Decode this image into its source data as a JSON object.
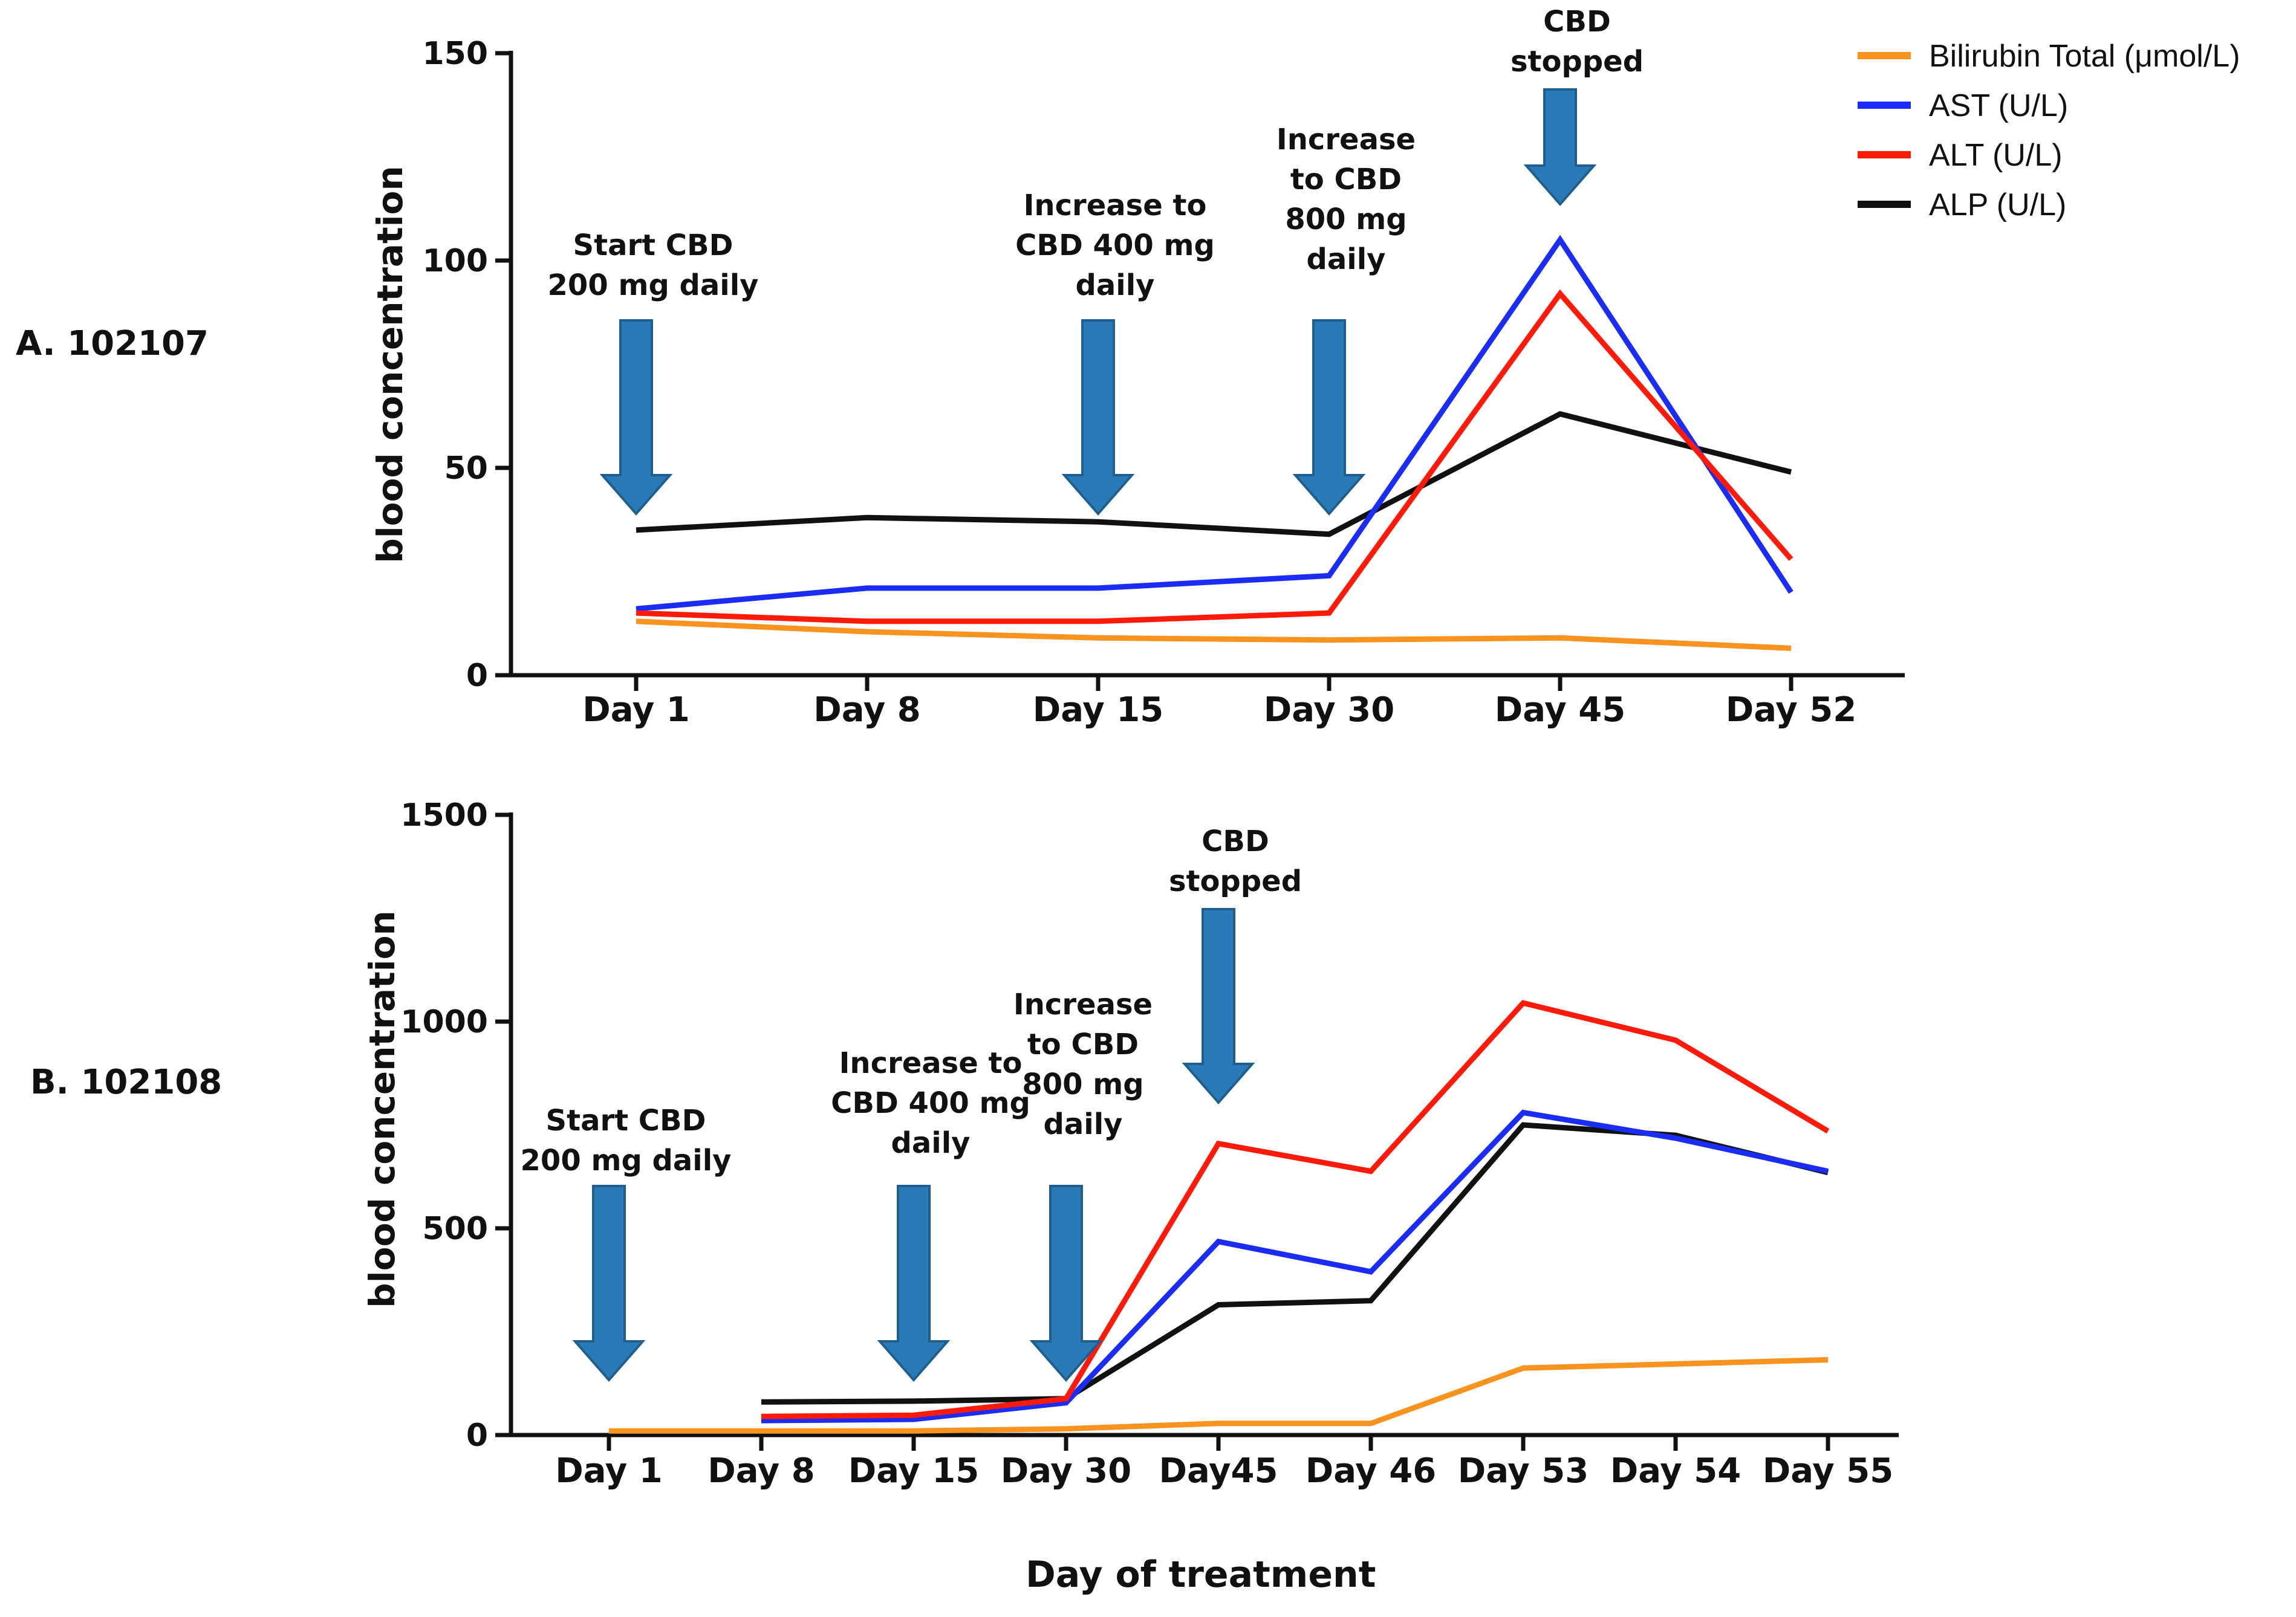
{
  "x_axis_title": "Day of treatment",
  "legend": [
    {
      "label": "Bilirubin Total (μmol/L)",
      "color": "#f7931e"
    },
    {
      "label": "AST (U/L)",
      "color": "#1a2cf5"
    },
    {
      "label": "ALT (U/L)",
      "color": "#ff1a0a"
    },
    {
      "label": "ALP (U/L)",
      "color": "#111111"
    }
  ],
  "colors": {
    "arrow": "#2a7ab8",
    "arrow_edge": "#1f5f8f",
    "axis": "#111111"
  },
  "chart_data": [
    {
      "panel": "A. 102107",
      "type": "line",
      "title": "",
      "xlabel": "",
      "ylabel": "blood concentration",
      "ylim": [
        0,
        150
      ],
      "yticks": [
        0,
        50,
        100,
        150
      ],
      "categories": [
        "Day 1",
        "Day 8",
        "Day 15",
        "Day 30",
        "Day 45",
        "Day 52"
      ],
      "series": [
        {
          "name": "Bilirubin Total (μmol/L)",
          "values": [
            13,
            10.5,
            9,
            8.5,
            9,
            6.5
          ]
        },
        {
          "name": "AST (U/L)",
          "values": [
            16,
            21,
            21,
            24,
            105,
            20
          ]
        },
        {
          "name": "ALT (U/L)",
          "values": [
            15,
            13,
            13,
            15,
            92,
            28
          ]
        },
        {
          "name": "ALP (U/L)",
          "values": [
            35,
            38,
            37,
            34,
            63,
            49
          ]
        }
      ],
      "annotations": [
        {
          "lines": [
            "Start CBD",
            "200 mg daily"
          ],
          "category": "Day 1"
        },
        {
          "lines": [
            "Increase to",
            "CBD 400 mg",
            "daily"
          ],
          "category": "Day 15"
        },
        {
          "lines": [
            "Increase",
            "to CBD",
            "800 mg",
            "daily"
          ],
          "category": "Day 30"
        },
        {
          "lines": [
            "CBD",
            "stopped"
          ],
          "category": "Day 45"
        }
      ]
    },
    {
      "panel": "B. 102108",
      "type": "line",
      "title": "",
      "xlabel": "",
      "ylabel": "blood concentration",
      "ylim": [
        0,
        1500
      ],
      "yticks": [
        0,
        500,
        1000,
        1500
      ],
      "categories": [
        "Day 1",
        "Day 8",
        "Day 15",
        "Day 30",
        "Day45",
        "Day 46",
        "Day 53",
        "Day 54",
        "Day 55"
      ],
      "series": [
        {
          "name": "Bilirubin Total (μmol/L)",
          "values": [
            10,
            10,
            10,
            15,
            28,
            28,
            162,
            172,
            182
          ]
        },
        {
          "name": "AST (U/L)",
          "values": [
            null,
            35,
            38,
            78,
            468,
            395,
            780,
            718,
            638
          ]
        },
        {
          "name": "ALT (U/L)",
          "values": [
            null,
            45,
            48,
            88,
            705,
            638,
            1045,
            955,
            735
          ]
        },
        {
          "name": "ALP (U/L)",
          "values": [
            null,
            80,
            82,
            88,
            315,
            325,
            750,
            725,
            635
          ]
        }
      ],
      "annotations": [
        {
          "lines": [
            "Start CBD",
            "200 mg daily"
          ],
          "category": "Day 1"
        },
        {
          "lines": [
            "Increase to",
            "CBD 400 mg",
            "daily"
          ],
          "category": "Day 15"
        },
        {
          "lines": [
            "Increase",
            "to CBD",
            "800 mg",
            "daily"
          ],
          "category": "Day 30"
        },
        {
          "lines": [
            "CBD",
            "stopped"
          ],
          "category": "Day45"
        }
      ]
    }
  ]
}
